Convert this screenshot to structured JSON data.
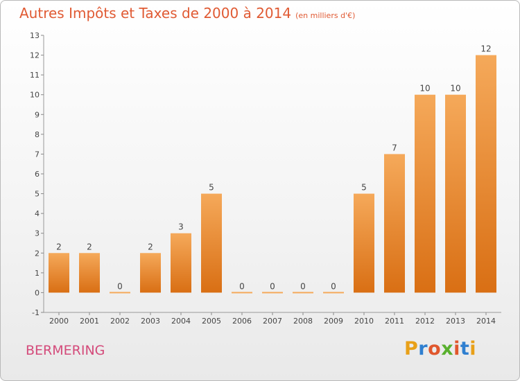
{
  "header": {
    "title": "Autres Impôts et Taxes de 2000 à 2014",
    "unit": "(en milliers d'€)"
  },
  "footer": {
    "commune": "BERMERING",
    "logo_text": "Proxiti"
  },
  "colors": {
    "title": "#e05a33",
    "bar_top": "#f5a95a",
    "bar_bottom": "#d96f14",
    "commune": "#d44a7a"
  },
  "chart_data": {
    "type": "bar",
    "title": "Autres Impôts et Taxes de 2000 à 2014",
    "subtitle": "(en milliers d'€)",
    "categories": [
      "2000",
      "2001",
      "2002",
      "2003",
      "2004",
      "2005",
      "2006",
      "2007",
      "2008",
      "2009",
      "2010",
      "2011",
      "2012",
      "2013",
      "2014"
    ],
    "values": [
      2,
      2,
      0,
      2,
      3,
      5,
      0,
      0,
      0,
      0,
      5,
      7,
      10,
      10,
      12
    ],
    "ylim": [
      -1,
      13
    ],
    "yticks": [
      -1,
      0,
      1,
      2,
      3,
      4,
      5,
      6,
      7,
      8,
      9,
      10,
      11,
      12,
      13
    ],
    "grid": false,
    "data_labels": true
  }
}
